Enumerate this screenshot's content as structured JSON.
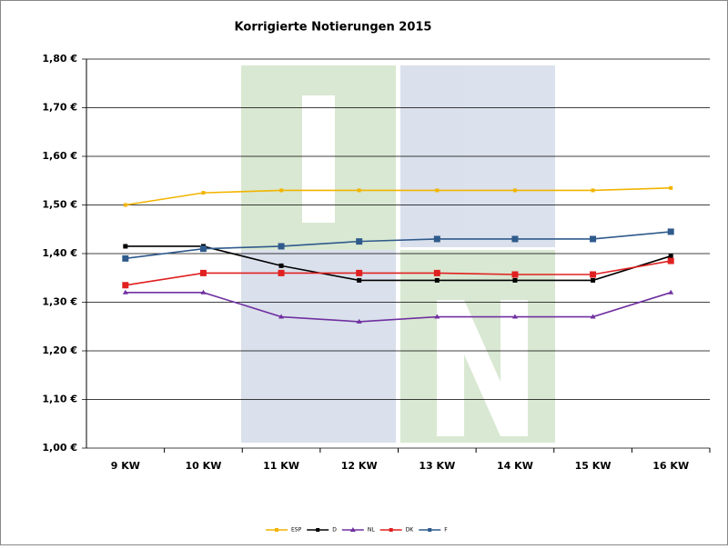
{
  "chart_data": {
    "type": "line",
    "title": "Korrigierte Notierungen 2015",
    "categories": [
      "9 KW",
      "10 KW",
      "11 KW",
      "12 KW",
      "13 KW",
      "14 KW",
      "15 KW",
      "16 KW"
    ],
    "series": [
      {
        "name": "ESP",
        "color": "#f2b400",
        "values": [
          1.5,
          1.525,
          1.53,
          1.53,
          1.53,
          1.53,
          1.53,
          1.535
        ]
      },
      {
        "name": "D",
        "color": "#000000",
        "values": [
          1.415,
          1.415,
          1.375,
          1.345,
          1.345,
          1.345,
          1.345,
          1.395
        ]
      },
      {
        "name": "NL",
        "color": "#7030a0",
        "values": [
          1.32,
          1.32,
          1.27,
          1.26,
          1.27,
          1.27,
          1.27,
          1.32
        ]
      },
      {
        "name": "DK",
        "color": "#e02020",
        "values": [
          1.335,
          1.36,
          1.36,
          1.36,
          1.36,
          1.357,
          1.357,
          1.385
        ]
      },
      {
        "name": "F",
        "color": "#2f5a8c",
        "values": [
          1.39,
          1.41,
          1.415,
          1.425,
          1.43,
          1.43,
          1.43,
          1.445
        ]
      }
    ],
    "ylim": [
      1.0,
      1.8
    ],
    "yticks": [
      {
        "value": 1.0,
        "label": "1,00 €"
      },
      {
        "value": 1.1,
        "label": "1,10 €"
      },
      {
        "value": 1.2,
        "label": "1,20 €"
      },
      {
        "value": 1.3,
        "label": "1,30 €"
      },
      {
        "value": 1.4,
        "label": "1,40 €"
      },
      {
        "value": 1.5,
        "label": "1,50 €"
      },
      {
        "value": 1.6,
        "label": "1,60 €"
      },
      {
        "value": 1.7,
        "label": "1,70 €"
      },
      {
        "value": 1.8,
        "label": "1,80 €"
      }
    ],
    "grid": true
  }
}
